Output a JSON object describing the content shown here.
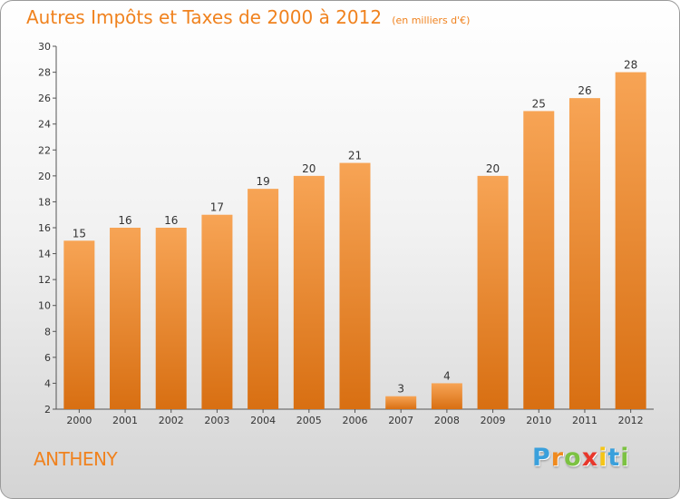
{
  "chart_data": {
    "type": "bar",
    "title": "Autres Impôts et Taxes de 2000 à 2012",
    "subtitle": "(en milliers d'€)",
    "categories": [
      "2000",
      "2001",
      "2002",
      "2003",
      "2004",
      "2005",
      "2006",
      "2007",
      "2008",
      "2009",
      "2010",
      "2011",
      "2012"
    ],
    "values": [
      15,
      16,
      16,
      17,
      19,
      20,
      21,
      3,
      4,
      20,
      25,
      26,
      28
    ],
    "ylim": [
      2,
      30
    ],
    "yticks": [
      2,
      4,
      6,
      8,
      10,
      12,
      14,
      16,
      18,
      20,
      22,
      24,
      26,
      28,
      30
    ],
    "grid": false,
    "data_labels": true,
    "bar_color": "#f0821e"
  },
  "footer": {
    "commune": "ANTHENY",
    "logo": {
      "letters": [
        "P",
        "r",
        "o",
        "x",
        "i",
        "t",
        "i"
      ],
      "colors": [
        "#3aa0dc",
        "#f08a1e",
        "#7cc242",
        "#e8372b",
        "#f5c518",
        "#3aa0dc",
        "#7cc242"
      ]
    }
  }
}
